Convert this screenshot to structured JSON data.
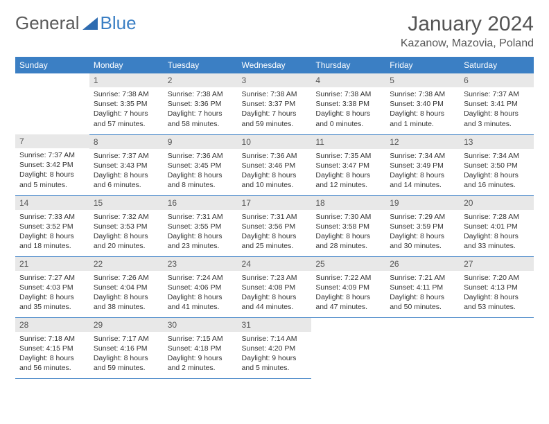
{
  "logo": {
    "text1": "General",
    "text2": "Blue"
  },
  "header": {
    "month_title": "January 2024",
    "location": "Kazanow, Mazovia, Poland"
  },
  "colors": {
    "header_bg": "#3b7fc4",
    "daynum_bg": "#e8e8e8",
    "border": "#3b7fc4"
  },
  "days_of_week": [
    "Sunday",
    "Monday",
    "Tuesday",
    "Wednesday",
    "Thursday",
    "Friday",
    "Saturday"
  ],
  "weeks": [
    [
      {
        "n": "",
        "sr": "",
        "ss": "",
        "dl": ""
      },
      {
        "n": "1",
        "sr": "Sunrise: 7:38 AM",
        "ss": "Sunset: 3:35 PM",
        "dl": "Daylight: 7 hours and 57 minutes."
      },
      {
        "n": "2",
        "sr": "Sunrise: 7:38 AM",
        "ss": "Sunset: 3:36 PM",
        "dl": "Daylight: 7 hours and 58 minutes."
      },
      {
        "n": "3",
        "sr": "Sunrise: 7:38 AM",
        "ss": "Sunset: 3:37 PM",
        "dl": "Daylight: 7 hours and 59 minutes."
      },
      {
        "n": "4",
        "sr": "Sunrise: 7:38 AM",
        "ss": "Sunset: 3:38 PM",
        "dl": "Daylight: 8 hours and 0 minutes."
      },
      {
        "n": "5",
        "sr": "Sunrise: 7:38 AM",
        "ss": "Sunset: 3:40 PM",
        "dl": "Daylight: 8 hours and 1 minute."
      },
      {
        "n": "6",
        "sr": "Sunrise: 7:37 AM",
        "ss": "Sunset: 3:41 PM",
        "dl": "Daylight: 8 hours and 3 minutes."
      }
    ],
    [
      {
        "n": "7",
        "sr": "Sunrise: 7:37 AM",
        "ss": "Sunset: 3:42 PM",
        "dl": "Daylight: 8 hours and 5 minutes."
      },
      {
        "n": "8",
        "sr": "Sunrise: 7:37 AM",
        "ss": "Sunset: 3:43 PM",
        "dl": "Daylight: 8 hours and 6 minutes."
      },
      {
        "n": "9",
        "sr": "Sunrise: 7:36 AM",
        "ss": "Sunset: 3:45 PM",
        "dl": "Daylight: 8 hours and 8 minutes."
      },
      {
        "n": "10",
        "sr": "Sunrise: 7:36 AM",
        "ss": "Sunset: 3:46 PM",
        "dl": "Daylight: 8 hours and 10 minutes."
      },
      {
        "n": "11",
        "sr": "Sunrise: 7:35 AM",
        "ss": "Sunset: 3:47 PM",
        "dl": "Daylight: 8 hours and 12 minutes."
      },
      {
        "n": "12",
        "sr": "Sunrise: 7:34 AM",
        "ss": "Sunset: 3:49 PM",
        "dl": "Daylight: 8 hours and 14 minutes."
      },
      {
        "n": "13",
        "sr": "Sunrise: 7:34 AM",
        "ss": "Sunset: 3:50 PM",
        "dl": "Daylight: 8 hours and 16 minutes."
      }
    ],
    [
      {
        "n": "14",
        "sr": "Sunrise: 7:33 AM",
        "ss": "Sunset: 3:52 PM",
        "dl": "Daylight: 8 hours and 18 minutes."
      },
      {
        "n": "15",
        "sr": "Sunrise: 7:32 AM",
        "ss": "Sunset: 3:53 PM",
        "dl": "Daylight: 8 hours and 20 minutes."
      },
      {
        "n": "16",
        "sr": "Sunrise: 7:31 AM",
        "ss": "Sunset: 3:55 PM",
        "dl": "Daylight: 8 hours and 23 minutes."
      },
      {
        "n": "17",
        "sr": "Sunrise: 7:31 AM",
        "ss": "Sunset: 3:56 PM",
        "dl": "Daylight: 8 hours and 25 minutes."
      },
      {
        "n": "18",
        "sr": "Sunrise: 7:30 AM",
        "ss": "Sunset: 3:58 PM",
        "dl": "Daylight: 8 hours and 28 minutes."
      },
      {
        "n": "19",
        "sr": "Sunrise: 7:29 AM",
        "ss": "Sunset: 3:59 PM",
        "dl": "Daylight: 8 hours and 30 minutes."
      },
      {
        "n": "20",
        "sr": "Sunrise: 7:28 AM",
        "ss": "Sunset: 4:01 PM",
        "dl": "Daylight: 8 hours and 33 minutes."
      }
    ],
    [
      {
        "n": "21",
        "sr": "Sunrise: 7:27 AM",
        "ss": "Sunset: 4:03 PM",
        "dl": "Daylight: 8 hours and 35 minutes."
      },
      {
        "n": "22",
        "sr": "Sunrise: 7:26 AM",
        "ss": "Sunset: 4:04 PM",
        "dl": "Daylight: 8 hours and 38 minutes."
      },
      {
        "n": "23",
        "sr": "Sunrise: 7:24 AM",
        "ss": "Sunset: 4:06 PM",
        "dl": "Daylight: 8 hours and 41 minutes."
      },
      {
        "n": "24",
        "sr": "Sunrise: 7:23 AM",
        "ss": "Sunset: 4:08 PM",
        "dl": "Daylight: 8 hours and 44 minutes."
      },
      {
        "n": "25",
        "sr": "Sunrise: 7:22 AM",
        "ss": "Sunset: 4:09 PM",
        "dl": "Daylight: 8 hours and 47 minutes."
      },
      {
        "n": "26",
        "sr": "Sunrise: 7:21 AM",
        "ss": "Sunset: 4:11 PM",
        "dl": "Daylight: 8 hours and 50 minutes."
      },
      {
        "n": "27",
        "sr": "Sunrise: 7:20 AM",
        "ss": "Sunset: 4:13 PM",
        "dl": "Daylight: 8 hours and 53 minutes."
      }
    ],
    [
      {
        "n": "28",
        "sr": "Sunrise: 7:18 AM",
        "ss": "Sunset: 4:15 PM",
        "dl": "Daylight: 8 hours and 56 minutes."
      },
      {
        "n": "29",
        "sr": "Sunrise: 7:17 AM",
        "ss": "Sunset: 4:16 PM",
        "dl": "Daylight: 8 hours and 59 minutes."
      },
      {
        "n": "30",
        "sr": "Sunrise: 7:15 AM",
        "ss": "Sunset: 4:18 PM",
        "dl": "Daylight: 9 hours and 2 minutes."
      },
      {
        "n": "31",
        "sr": "Sunrise: 7:14 AM",
        "ss": "Sunset: 4:20 PM",
        "dl": "Daylight: 9 hours and 5 minutes."
      },
      {
        "n": "",
        "sr": "",
        "ss": "",
        "dl": ""
      },
      {
        "n": "",
        "sr": "",
        "ss": "",
        "dl": ""
      },
      {
        "n": "",
        "sr": "",
        "ss": "",
        "dl": ""
      }
    ]
  ]
}
